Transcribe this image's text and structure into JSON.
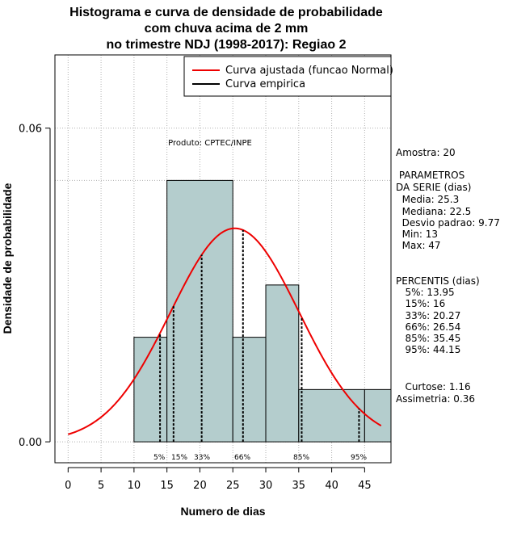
{
  "title_lines": [
    "Histograma e curva de densidade de probabilidade",
    "com chuva acima de 2 mm",
    "no trimestre NDJ (1998-2017): Regiao 2"
  ],
  "product_label": "Produto: CPTEC/INPE",
  "stats": {
    "sample": "Amostra: 20",
    "params_title_1": " PARAMETROS",
    "params_title_2": "DA SERIE (dias)",
    "media": "  Media: 25.3",
    "mediana": "  Mediana: 22.5",
    "desvio": "  Desvio padrao: 9.77",
    "min": "  Min: 13",
    "max": "  Max: 47",
    "percentis_title": "PERCENTIS (dias)",
    "p5": "   5%: 13.95",
    "p15": "   15%: 16",
    "p33": "   33%: 20.27",
    "p66": "   66%: 26.54",
    "p85": "   85%: 35.45",
    "p95": "   95%: 44.15",
    "curtose": "   Curtose: 1.16",
    "assimetria": "Assimetria: 0.36"
  },
  "colors": {
    "bar_fill": "#b4cdcd",
    "normal_curve": "#ee0000",
    "empirical": "#000000",
    "grid": "#b0b0b0"
  },
  "chart_data": {
    "type": "bar",
    "xlabel": "Numero de dias",
    "ylabel": "Densidade de probabilidade",
    "xlim": [
      -2,
      49
    ],
    "ylim": [
      -0.004,
      0.074
    ],
    "x_ticks": [
      0,
      5,
      10,
      15,
      20,
      25,
      30,
      35,
      40,
      45
    ],
    "y_ticks": [
      "0.00",
      "0.06"
    ],
    "y_tick_values": [
      0,
      0.06
    ],
    "bins": [
      {
        "start": 10,
        "end": 15,
        "density": 0.02
      },
      {
        "start": 15,
        "end": 25,
        "density": 0.05
      },
      {
        "start": 25,
        "end": 30,
        "density": 0.02
      },
      {
        "start": 30,
        "end": 35,
        "density": 0.03
      },
      {
        "start": 35,
        "end": 45,
        "density": 0.01
      },
      {
        "start": 45,
        "end": 49,
        "density": 0.01
      }
    ],
    "reference_hline": 0.05,
    "normal_curve": {
      "mean": 25.3,
      "sd": 9.77,
      "x_range": [
        0,
        47.5
      ]
    },
    "percentiles": [
      {
        "label": "5%",
        "value": 13.95
      },
      {
        "label": "15%",
        "value": 16
      },
      {
        "label": "33%",
        "value": 20.27
      },
      {
        "label": "66%",
        "value": 26.54
      },
      {
        "label": "85%",
        "value": 35.45
      },
      {
        "label": "95%",
        "value": 44.15
      }
    ],
    "legend": {
      "position": "top-right",
      "entries": [
        {
          "name": "Curva ajustada (funcao Normal)",
          "color": "#ee0000"
        },
        {
          "name": "Curva empirica",
          "color": "#000000"
        }
      ]
    }
  }
}
